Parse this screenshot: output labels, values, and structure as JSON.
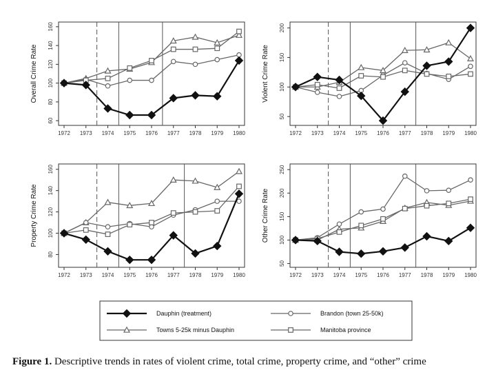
{
  "colors": {
    "dauphin": "#111111",
    "brandon": "#666666",
    "towns": "#666666",
    "manitoba": "#666666",
    "frame": "#333333",
    "vline": "#555555"
  },
  "legend": {
    "entries": [
      {
        "key": "dauphin",
        "label": "Dauphin (treatment)",
        "marker": "diamond"
      },
      {
        "key": "brandon",
        "label": "Brandon (town 25-50k)",
        "marker": "circle"
      },
      {
        "key": "towns",
        "label": "Towns 5-25k minus Dauphin",
        "marker": "triangle"
      },
      {
        "key": "manitoba",
        "label": "Manitoba province",
        "marker": "square"
      }
    ]
  },
  "caption": {
    "label": "Figure 1.",
    "text": " Descriptive trends in rates of violent crime, total crime, property crime, and “other” crime"
  },
  "chart_data": [
    {
      "type": "line",
      "ylabel": "Overall Crime Rate",
      "x": [
        "1972",
        "1973",
        "1974",
        "1975",
        "1976",
        "1977",
        "1978",
        "1979",
        "1980"
      ],
      "yticks": [
        60,
        80,
        100,
        120,
        140,
        160
      ],
      "ylim": [
        55,
        165
      ],
      "reference_lines": {
        "dashed": 1973.5,
        "solid": [
          1974.5,
          1976.5
        ]
      },
      "series": [
        {
          "name": "dauphin",
          "values": [
            100,
            98,
            73,
            66,
            66,
            84,
            87,
            86,
            124
          ]
        },
        {
          "name": "brandon",
          "values": [
            100,
            104,
            97,
            103,
            103,
            123,
            120,
            125,
            130
          ]
        },
        {
          "name": "towns",
          "values": [
            100,
            105,
            113,
            115,
            122,
            145,
            149,
            143,
            151
          ]
        },
        {
          "name": "manitoba",
          "values": [
            100,
            103,
            105,
            116,
            124,
            136,
            136,
            137,
            155
          ]
        }
      ]
    },
    {
      "type": "line",
      "ylabel": "Violent Crime Rate",
      "x": [
        "1972",
        "1973",
        "1974",
        "1975",
        "1976",
        "1977",
        "1978",
        "1979",
        "1980"
      ],
      "yticks": [
        50,
        100,
        150,
        200
      ],
      "ylim": [
        35,
        210
      ],
      "reference_lines": {
        "dashed": 1973.5,
        "solid": [
          1974.5,
          1977.5
        ]
      },
      "series": [
        {
          "name": "dauphin",
          "values": [
            100,
            117,
            112,
            85,
            43,
            92,
            136,
            143,
            200
          ]
        },
        {
          "name": "brandon",
          "values": [
            100,
            91,
            84,
            94,
            120,
            141,
            123,
            113,
            135
          ]
        },
        {
          "name": "towns",
          "values": [
            100,
            100,
            108,
            133,
            128,
            162,
            163,
            175,
            148
          ]
        },
        {
          "name": "manitoba",
          "values": [
            100,
            104,
            98,
            119,
            117,
            128,
            122,
            118,
            122
          ]
        }
      ]
    },
    {
      "type": "line",
      "ylabel": "Property Crime Rate",
      "x": [
        "1972",
        "1973",
        "1974",
        "1975",
        "1976",
        "1977",
        "1978",
        "1979",
        "1980"
      ],
      "yticks": [
        80,
        100,
        120,
        140,
        160
      ],
      "ylim": [
        68,
        165
      ],
      "reference_lines": {
        "dashed": 1973.5,
        "solid": [
          1974.5,
          1977.5
        ]
      },
      "series": [
        {
          "name": "dauphin",
          "values": [
            100,
            94,
            83,
            75,
            75,
            98,
            81,
            88,
            137
          ]
        },
        {
          "name": "brandon",
          "values": [
            100,
            110,
            106,
            109,
            106,
            117,
            122,
            130,
            130
          ]
        },
        {
          "name": "towns",
          "values": [
            100,
            110,
            129,
            126,
            128,
            150,
            149,
            143,
            158
          ]
        },
        {
          "name": "manitoba",
          "values": [
            100,
            103,
            99,
            108,
            110,
            119,
            120,
            121,
            144
          ]
        }
      ]
    },
    {
      "type": "line",
      "ylabel": "Other Crime Rate",
      "x": [
        "1972",
        "1973",
        "1974",
        "1975",
        "1976",
        "1977",
        "1978",
        "1979",
        "1980"
      ],
      "yticks": [
        50,
        100,
        150,
        200,
        250
      ],
      "ylim": [
        42,
        262
      ],
      "reference_lines": {
        "dashed": 1973.5,
        "solid": [
          1974.5,
          1977.5
        ]
      },
      "series": [
        {
          "name": "dauphin",
          "values": [
            100,
            98,
            75,
            71,
            76,
            84,
            108,
            98,
            126
          ]
        },
        {
          "name": "brandon",
          "values": [
            100,
            105,
            134,
            160,
            166,
            236,
            205,
            206,
            228
          ]
        },
        {
          "name": "towns",
          "values": [
            100,
            100,
            123,
            126,
            140,
            168,
            180,
            174,
            183
          ]
        },
        {
          "name": "manitoba",
          "values": [
            100,
            103,
            117,
            131,
            145,
            167,
            173,
            178,
            187
          ]
        }
      ]
    }
  ]
}
